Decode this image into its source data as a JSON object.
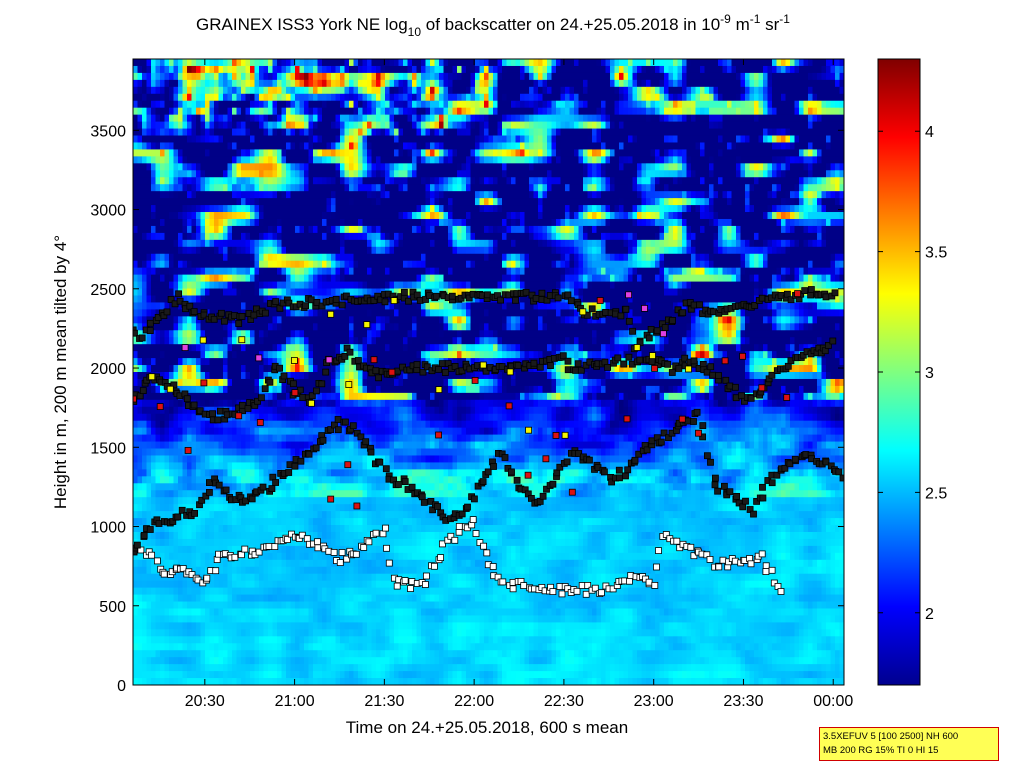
{
  "chart_data": {
    "type": "heatmap",
    "title": {
      "prefix": "GRAINEX ISS3 York NE log",
      "sub": "10",
      "middle": " of backscatter on 24.+25.05.2018 in 10",
      "sup1": "-9",
      "unit1": " m",
      "sup2": "-1",
      "unit2": " sr",
      "sup3": "-1"
    },
    "xlabel": "Time on 24.+25.05.2018, 600 s mean",
    "ylabel": "Height in m, 200 m mean tilted by 4°",
    "x_range_hours": [
      20.1,
      24.06
    ],
    "x_ticks": [
      {
        "hour": 20.5,
        "label": "20:30"
      },
      {
        "hour": 21.0,
        "label": "21:00"
      },
      {
        "hour": 21.5,
        "label": "21:30"
      },
      {
        "hour": 22.0,
        "label": "22:00"
      },
      {
        "hour": 22.5,
        "label": "22:30"
      },
      {
        "hour": 23.0,
        "label": "23:00"
      },
      {
        "hour": 23.5,
        "label": "23:30"
      },
      {
        "hour": 24.0,
        "label": "00:00"
      }
    ],
    "ylim": [
      0,
      3950
    ],
    "y_ticks": [
      0,
      500,
      1000,
      1500,
      2000,
      2500,
      3000,
      3500
    ],
    "colorbar": {
      "range": [
        1.7,
        4.3
      ],
      "ticks": [
        2,
        2.5,
        3,
        3.5,
        4
      ],
      "colormap": "jet"
    },
    "bands": [
      {
        "name": "lower-white-layer",
        "marker": "#ffffff",
        "points": [
          [
            20.15,
            850
          ],
          [
            20.3,
            700
          ],
          [
            20.4,
            720
          ],
          [
            20.5,
            650
          ],
          [
            20.6,
            830
          ],
          [
            20.75,
            830
          ],
          [
            20.9,
            900
          ],
          [
            21.0,
            950
          ],
          [
            21.1,
            900
          ],
          [
            21.25,
            800
          ],
          [
            21.35,
            850
          ],
          [
            21.5,
            1000
          ],
          [
            21.55,
            650
          ],
          [
            21.7,
            620
          ],
          [
            21.85,
            900
          ],
          [
            22.0,
            1050
          ],
          [
            22.05,
            850
          ],
          [
            22.15,
            650
          ],
          [
            22.3,
            620
          ],
          [
            22.45,
            600
          ],
          [
            22.6,
            600
          ],
          [
            22.75,
            600
          ],
          [
            22.9,
            700
          ],
          [
            23.0,
            620
          ],
          [
            23.05,
            950
          ],
          [
            23.2,
            850
          ],
          [
            23.35,
            760
          ],
          [
            23.5,
            780
          ],
          [
            23.6,
            800
          ],
          [
            23.7,
            600
          ]
        ]
      },
      {
        "name": "upper-black-layer",
        "marker": "#1a1a1a",
        "points": [
          [
            20.1,
            850
          ],
          [
            20.2,
            1000
          ],
          [
            20.3,
            1050
          ],
          [
            20.45,
            1100
          ],
          [
            20.55,
            1300
          ],
          [
            20.65,
            1180
          ],
          [
            20.75,
            1170
          ],
          [
            20.85,
            1250
          ],
          [
            20.95,
            1350
          ],
          [
            21.05,
            1450
          ],
          [
            21.15,
            1550
          ],
          [
            21.25,
            1650
          ],
          [
            21.35,
            1600
          ],
          [
            21.45,
            1420
          ],
          [
            21.55,
            1300
          ],
          [
            21.65,
            1250
          ],
          [
            21.75,
            1150
          ],
          [
            21.85,
            1050
          ],
          [
            21.95,
            1100
          ],
          [
            22.05,
            1300
          ],
          [
            22.15,
            1460
          ],
          [
            22.25,
            1250
          ],
          [
            22.35,
            1150
          ],
          [
            22.45,
            1300
          ],
          [
            22.55,
            1480
          ],
          [
            22.65,
            1400
          ],
          [
            22.75,
            1300
          ],
          [
            22.85,
            1350
          ],
          [
            22.95,
            1500
          ],
          [
            23.05,
            1550
          ],
          [
            23.15,
            1650
          ],
          [
            23.25,
            1700
          ],
          [
            23.35,
            1250
          ],
          [
            23.45,
            1200
          ],
          [
            23.55,
            1100
          ],
          [
            23.65,
            1300
          ],
          [
            23.75,
            1400
          ],
          [
            23.85,
            1450
          ],
          [
            23.95,
            1400
          ],
          [
            24.05,
            1300
          ]
        ]
      },
      {
        "name": "mid-black-layer",
        "marker": "#1a1a1a",
        "points": [
          [
            20.1,
            1800
          ],
          [
            20.2,
            1950
          ],
          [
            20.3,
            1900
          ],
          [
            20.4,
            1800
          ],
          [
            20.5,
            1700
          ],
          [
            20.6,
            1700
          ],
          [
            20.7,
            1750
          ],
          [
            20.8,
            1800
          ],
          [
            20.9,
            2000
          ],
          [
            21.0,
            1850
          ],
          [
            21.1,
            1800
          ],
          [
            21.2,
            2050
          ],
          [
            21.3,
            2100
          ],
          [
            21.4,
            2000
          ],
          [
            21.5,
            1950
          ],
          [
            21.6,
            2000
          ],
          [
            22.2,
            2000
          ],
          [
            22.5,
            2050
          ],
          [
            22.55,
            2000
          ],
          [
            22.9,
            2050
          ],
          [
            23.0,
            2050
          ],
          [
            23.1,
            2000
          ],
          [
            23.2,
            2050
          ],
          [
            23.3,
            2000
          ],
          [
            23.5,
            1800
          ],
          [
            23.6,
            1850
          ],
          [
            23.7,
            2000
          ],
          [
            23.8,
            2050
          ],
          [
            23.9,
            2100
          ],
          [
            24.0,
            2150
          ]
        ]
      },
      {
        "name": "high-black-layer",
        "marker": "#1a1a1a",
        "points": [
          [
            20.1,
            2220
          ],
          [
            20.15,
            2200
          ],
          [
            20.35,
            2450
          ],
          [
            20.45,
            2350
          ],
          [
            20.7,
            2300
          ],
          [
            20.9,
            2400
          ],
          [
            21.6,
            2450
          ],
          [
            22.55,
            2450
          ],
          [
            22.6,
            2350
          ],
          [
            22.85,
            2350
          ],
          [
            22.9,
            2150
          ],
          [
            23.2,
            2400
          ],
          [
            23.3,
            2350
          ],
          [
            23.9,
            2480
          ],
          [
            24.0,
            2450
          ]
        ]
      },
      {
        "name": "red-highlight",
        "marker": "#dd1111",
        "points": [
          [
            20.1,
            1830
          ],
          [
            20.25,
            1750
          ],
          [
            20.4,
            1500
          ],
          [
            20.5,
            1900
          ],
          [
            20.7,
            1720
          ],
          [
            20.8,
            1650
          ],
          [
            21.0,
            1850
          ],
          [
            21.2,
            1200
          ],
          [
            21.3,
            1400
          ],
          [
            21.35,
            1150
          ],
          [
            21.45,
            2050
          ],
          [
            21.55,
            1950
          ],
          [
            21.8,
            1600
          ],
          [
            22.0,
            1900
          ],
          [
            22.2,
            1750
          ],
          [
            22.3,
            1300
          ],
          [
            22.4,
            1450
          ],
          [
            22.45,
            1550
          ],
          [
            22.55,
            1200
          ],
          [
            22.7,
            2400
          ],
          [
            22.85,
            1700
          ],
          [
            23.0,
            2000
          ],
          [
            23.15,
            1650
          ],
          [
            23.25,
            1600
          ],
          [
            23.4,
            2050
          ],
          [
            23.5,
            2100
          ],
          [
            23.6,
            1850
          ],
          [
            23.75,
            1800
          ],
          [
            23.8,
            2450
          ]
        ]
      },
      {
        "name": "yellow-highlight",
        "marker": "#f5f500",
        "points": [
          [
            20.2,
            1920
          ],
          [
            20.3,
            1850
          ],
          [
            20.5,
            2150
          ],
          [
            20.7,
            2200
          ],
          [
            21.0,
            2050
          ],
          [
            21.1,
            1750
          ],
          [
            21.2,
            2350
          ],
          [
            21.3,
            1900
          ],
          [
            21.4,
            2300
          ],
          [
            21.55,
            2400
          ],
          [
            21.8,
            1850
          ],
          [
            22.05,
            2000
          ],
          [
            22.2,
            2000
          ],
          [
            22.3,
            1600
          ],
          [
            22.5,
            1550
          ],
          [
            22.6,
            2350
          ],
          [
            22.9,
            2150
          ],
          [
            23.0,
            2100
          ],
          [
            23.2,
            2000
          ]
        ]
      },
      {
        "name": "magenta-highlight",
        "marker": "#e040e0",
        "points": [
          [
            20.4,
            2150
          ],
          [
            20.8,
            2070
          ],
          [
            21.2,
            2080
          ],
          [
            22.85,
            2480
          ],
          [
            22.95,
            2350
          ],
          [
            23.05,
            2200
          ]
        ]
      }
    ]
  },
  "info_box": {
    "line1": "3.5XEFUV 5 [100 2500] NH 600",
    "line2": "MB 200 RG 15% TI 0 HI 15",
    "background": "#ffff55",
    "border": "#d00000"
  }
}
